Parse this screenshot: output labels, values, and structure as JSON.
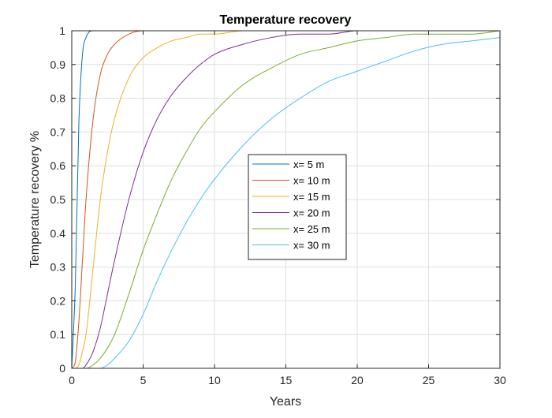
{
  "chart_data": {
    "type": "line",
    "title": "Temperature recovery",
    "xlabel": "Years",
    "ylabel": "Temperature recovery %",
    "xlim": [
      0,
      30
    ],
    "ylim": [
      0,
      1
    ],
    "xticks": [
      "0",
      "5",
      "10",
      "15",
      "20",
      "25",
      "30"
    ],
    "yticks": [
      "0",
      "0.1",
      "0.2",
      "0.3",
      "0.4",
      "0.5",
      "0.6",
      "0.7",
      "0.8",
      "0.9",
      "1"
    ],
    "grid": true,
    "legend_position": "center",
    "x": [
      0,
      0.25,
      0.5,
      0.75,
      1,
      1.5,
      2,
      2.5,
      3,
      4,
      5,
      6,
      7,
      8,
      9,
      10,
      12,
      14,
      16,
      18,
      20,
      22,
      24,
      26,
      28,
      30
    ],
    "series": [
      {
        "name": "x= 5 m",
        "color": "#0072BD",
        "values": [
          0,
          0.25,
          0.73,
          0.93,
          0.98,
          1,
          1,
          1,
          1,
          1,
          1,
          1,
          1,
          1,
          1,
          1,
          1,
          1,
          1,
          1,
          1,
          1,
          1,
          1,
          1,
          1
        ]
      },
      {
        "name": "x= 10 m",
        "color": "#D95319",
        "values": [
          0,
          0.02,
          0.14,
          0.32,
          0.5,
          0.74,
          0.87,
          0.93,
          0.96,
          0.99,
          1,
          1,
          1,
          1,
          1,
          1,
          1,
          1,
          1,
          1,
          1,
          1,
          1,
          1,
          1,
          1
        ]
      },
      {
        "name": "x= 15 m",
        "color": "#EDB120",
        "values": [
          0,
          0,
          0.01,
          0.05,
          0.1,
          0.3,
          0.5,
          0.64,
          0.74,
          0.86,
          0.92,
          0.95,
          0.97,
          0.98,
          0.99,
          0.99,
          1,
          1,
          1,
          1,
          1,
          1,
          1,
          1,
          1,
          1
        ]
      },
      {
        "name": "x= 20 m",
        "color": "#7E2F8E",
        "values": [
          0,
          0,
          0,
          0,
          0.01,
          0.05,
          0.12,
          0.22,
          0.32,
          0.5,
          0.64,
          0.74,
          0.81,
          0.86,
          0.9,
          0.93,
          0.96,
          0.98,
          0.99,
          0.99,
          1,
          1,
          1,
          1,
          1,
          1
        ]
      },
      {
        "name": "x= 25 m",
        "color": "#77AC30",
        "values": [
          0,
          0,
          0,
          0,
          0,
          0.01,
          0.03,
          0.06,
          0.1,
          0.22,
          0.35,
          0.46,
          0.56,
          0.64,
          0.71,
          0.76,
          0.84,
          0.89,
          0.93,
          0.95,
          0.97,
          0.98,
          0.99,
          0.99,
          0.99,
          1
        ]
      },
      {
        "name": "x= 30 m",
        "color": "#4DBEEE",
        "values": [
          0,
          0,
          0,
          0,
          0,
          0,
          0,
          0.01,
          0.03,
          0.08,
          0.16,
          0.26,
          0.35,
          0.43,
          0.5,
          0.56,
          0.66,
          0.74,
          0.8,
          0.85,
          0.88,
          0.91,
          0.94,
          0.96,
          0.97,
          0.98
        ]
      }
    ]
  }
}
